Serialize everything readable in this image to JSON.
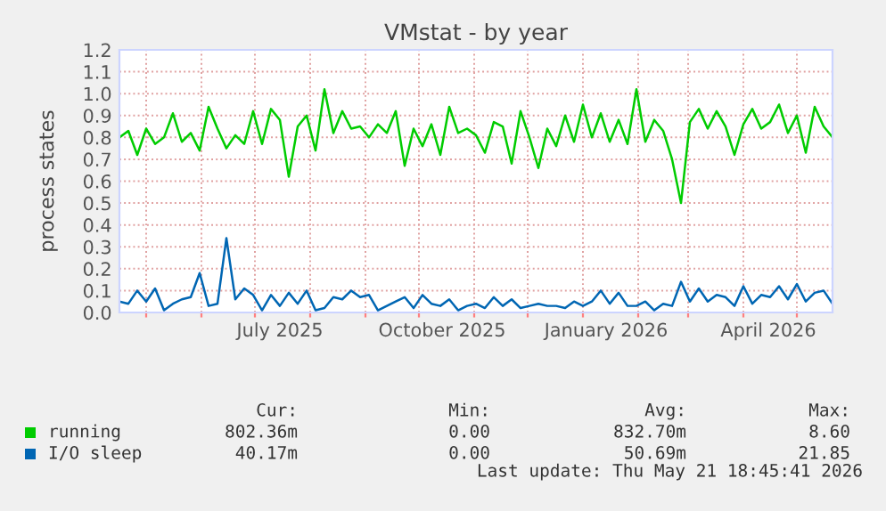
{
  "chart_data": {
    "type": "line",
    "title": "VMstat - by year",
    "ylabel": "process states",
    "x": [
      "2025-04-16",
      "2025-04-21",
      "2025-04-26",
      "2025-05-01",
      "2025-05-06",
      "2025-05-11",
      "2025-05-16",
      "2025-05-21",
      "2025-05-26",
      "2025-05-31",
      "2025-06-05",
      "2025-06-10",
      "2025-06-15",
      "2025-06-20",
      "2025-06-25",
      "2025-06-30",
      "2025-07-05",
      "2025-07-10",
      "2025-07-15",
      "2025-07-20",
      "2025-07-25",
      "2025-07-30",
      "2025-08-04",
      "2025-08-09",
      "2025-08-14",
      "2025-08-19",
      "2025-08-24",
      "2025-08-29",
      "2025-09-03",
      "2025-09-08",
      "2025-09-13",
      "2025-09-18",
      "2025-09-23",
      "2025-09-28",
      "2025-10-03",
      "2025-10-08",
      "2025-10-13",
      "2025-10-18",
      "2025-10-23",
      "2025-10-28",
      "2025-11-02",
      "2025-11-07",
      "2025-11-12",
      "2025-11-17",
      "2025-11-22",
      "2025-11-27",
      "2025-12-02",
      "2025-12-07",
      "2025-12-12",
      "2025-12-17",
      "2025-12-22",
      "2025-12-27",
      "2026-01-01",
      "2026-01-06",
      "2026-01-11",
      "2026-01-16",
      "2026-01-21",
      "2026-01-26",
      "2026-01-31",
      "2026-02-05",
      "2026-02-10",
      "2026-02-15",
      "2026-02-20",
      "2026-02-25",
      "2026-03-02",
      "2026-03-07",
      "2026-03-12",
      "2026-03-17",
      "2026-03-22",
      "2026-03-27",
      "2026-04-01",
      "2026-04-06",
      "2026-04-11",
      "2026-04-16",
      "2026-04-21",
      "2026-04-26",
      "2026-05-01",
      "2026-05-06",
      "2026-05-11",
      "2026-05-16",
      "2026-05-21"
    ],
    "series": [
      {
        "name": "running",
        "color": "#00cc00",
        "values": [
          0.8,
          0.83,
          0.72,
          0.84,
          0.77,
          0.8,
          0.91,
          0.78,
          0.82,
          0.74,
          0.94,
          0.84,
          0.75,
          0.81,
          0.77,
          0.92,
          0.77,
          0.93,
          0.88,
          0.62,
          0.85,
          0.9,
          0.74,
          1.02,
          0.82,
          0.92,
          0.84,
          0.85,
          0.8,
          0.86,
          0.82,
          0.92,
          0.67,
          0.84,
          0.76,
          0.86,
          0.72,
          0.94,
          0.82,
          0.84,
          0.81,
          0.73,
          0.87,
          0.85,
          0.68,
          0.92,
          0.8,
          0.66,
          0.84,
          0.76,
          0.9,
          0.78,
          0.95,
          0.8,
          0.91,
          0.78,
          0.88,
          0.77,
          1.02,
          0.78,
          0.88,
          0.83,
          0.7,
          0.5,
          0.87,
          0.93,
          0.84,
          0.92,
          0.85,
          0.72,
          0.86,
          0.93,
          0.84,
          0.87,
          0.95,
          0.82,
          0.9,
          0.73,
          0.94,
          0.85,
          0.8
        ]
      },
      {
        "name": "I/O sleep",
        "color": "#0066b3",
        "values": [
          0.05,
          0.04,
          0.1,
          0.05,
          0.11,
          0.01,
          0.04,
          0.06,
          0.07,
          0.18,
          0.03,
          0.04,
          0.34,
          0.06,
          0.11,
          0.08,
          0.01,
          0.08,
          0.03,
          0.09,
          0.04,
          0.1,
          0.01,
          0.02,
          0.07,
          0.06,
          0.1,
          0.07,
          0.08,
          0.01,
          0.03,
          0.05,
          0.07,
          0.02,
          0.08,
          0.04,
          0.03,
          0.06,
          0.01,
          0.03,
          0.04,
          0.02,
          0.07,
          0.03,
          0.06,
          0.02,
          0.03,
          0.04,
          0.03,
          0.03,
          0.02,
          0.05,
          0.03,
          0.05,
          0.1,
          0.04,
          0.09,
          0.03,
          0.03,
          0.05,
          0.01,
          0.04,
          0.03,
          0.14,
          0.05,
          0.11,
          0.05,
          0.08,
          0.07,
          0.03,
          0.12,
          0.04,
          0.08,
          0.07,
          0.12,
          0.06,
          0.13,
          0.05,
          0.09,
          0.1,
          0.04
        ]
      }
    ],
    "xlim": [
      "2025-04-16",
      "2026-05-21"
    ],
    "xticks": [
      {
        "value": "2025-05-01",
        "label": null
      },
      {
        "value": "2025-06-01",
        "label": null
      },
      {
        "value": "2025-07-01",
        "label": null
      },
      {
        "value": "2025-07-15",
        "label": "July 2025"
      },
      {
        "value": "2025-08-01",
        "label": null
      },
      {
        "value": "2025-09-01",
        "label": null
      },
      {
        "value": "2025-10-01",
        "label": null
      },
      {
        "value": "2025-10-14",
        "label": "October 2025"
      },
      {
        "value": "2025-11-01",
        "label": null
      },
      {
        "value": "2025-12-01",
        "label": null
      },
      {
        "value": "2026-01-01",
        "label": null
      },
      {
        "value": "2026-01-14",
        "label": "January 2026"
      },
      {
        "value": "2026-02-01",
        "label": null
      },
      {
        "value": "2026-03-01",
        "label": null
      },
      {
        "value": "2026-04-01",
        "label": null
      },
      {
        "value": "2026-04-15",
        "label": "April 2026"
      },
      {
        "value": "2026-05-01",
        "label": null
      }
    ],
    "ylim": [
      0,
      1.2
    ],
    "yticks": [
      {
        "value": 0,
        "label": "0.0"
      },
      {
        "value": 0.1,
        "label": "0.1"
      },
      {
        "value": 0.2,
        "label": "0.2"
      },
      {
        "value": 0.3,
        "label": "0.3"
      },
      {
        "value": 0.4,
        "label": "0.4"
      },
      {
        "value": 0.5,
        "label": "0.5"
      },
      {
        "value": 0.6,
        "label": "0.6"
      },
      {
        "value": 0.7,
        "label": "0.7"
      },
      {
        "value": 0.8,
        "label": "0.8"
      },
      {
        "value": 0.9,
        "label": "0.9"
      },
      {
        "value": 1.0,
        "label": "1.0"
      },
      {
        "value": 1.1,
        "label": "1.1"
      },
      {
        "value": 1.2,
        "label": "1.2"
      }
    ],
    "grid": true,
    "legend": "bottom left",
    "marker": "none",
    "line_style": "solid",
    "annotations": [
      "Cur:",
      "Min:",
      "Avg:",
      "Max:",
      "802.36m",
      "0.00",
      "832.70m",
      "8.60",
      "40.17m",
      "0.00",
      "50.69m",
      "21.85",
      "Last update: Thu May 21 18:45:41 2026"
    ]
  }
}
